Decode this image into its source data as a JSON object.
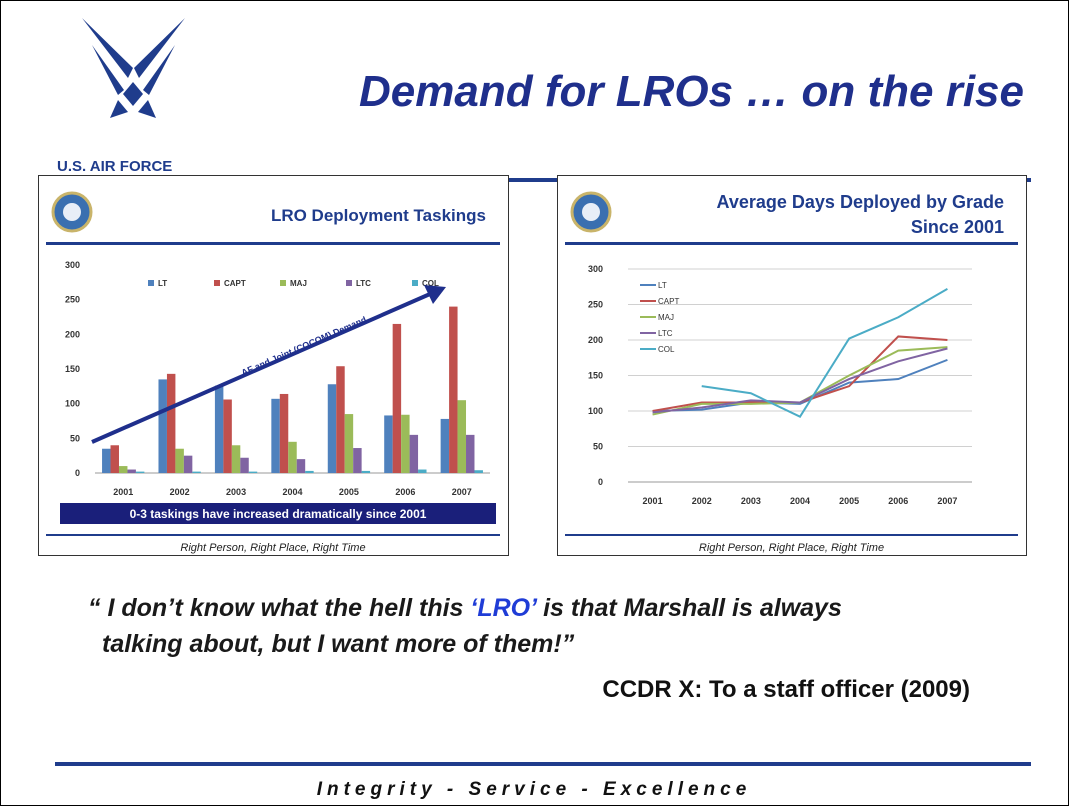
{
  "header": {
    "title": "Demand for LROs … on the rise",
    "logo_text": "U.S. AIR FORCE"
  },
  "chart_data": [
    {
      "type": "bar",
      "title": "LRO Deployment Taskings",
      "annotation": "AF and Joint (COCOM) Demand",
      "banner": "0-3 taskings have increased dramatically since 2001",
      "note": "Right Person, Right Place, Right Time",
      "categories": [
        "2001",
        "2002",
        "2003",
        "2004",
        "2005",
        "2006",
        "2007"
      ],
      "series": [
        {
          "name": "LT",
          "color": "#4f81bd",
          "values": [
            35,
            135,
            126,
            107,
            128,
            83,
            78
          ]
        },
        {
          "name": "CAPT",
          "color": "#c0504d",
          "values": [
            40,
            143,
            106,
            114,
            154,
            215,
            240
          ]
        },
        {
          "name": "MAJ",
          "color": "#9bbb59",
          "values": [
            10,
            35,
            40,
            45,
            85,
            84,
            105
          ]
        },
        {
          "name": "LTC",
          "color": "#8064a2",
          "values": [
            5,
            25,
            22,
            20,
            36,
            55,
            55
          ]
        },
        {
          "name": "COL",
          "color": "#4bacc6",
          "values": [
            2,
            2,
            2,
            3,
            3,
            5,
            4
          ]
        }
      ],
      "ylim": [
        0,
        300
      ],
      "yticks": [
        0,
        50,
        100,
        150,
        200,
        250,
        300
      ],
      "grid": false,
      "legend": "top"
    },
    {
      "type": "line",
      "title": "Average Days Deployed by Grade",
      "subtitle": "Since 2001",
      "note": "Right Person, Right Place, Right Time",
      "categories": [
        "2001",
        "2002",
        "2003",
        "2004",
        "2005",
        "2006",
        "2007"
      ],
      "series": [
        {
          "name": "LT",
          "color": "#4f81bd",
          "values": [
            100,
            102,
            112,
            110,
            140,
            145,
            172
          ]
        },
        {
          "name": "CAPT",
          "color": "#c0504d",
          "values": [
            100,
            112,
            112,
            112,
            135,
            205,
            200
          ]
        },
        {
          "name": "MAJ",
          "color": "#9bbb59",
          "values": [
            95,
            110,
            110,
            112,
            150,
            185,
            190
          ]
        },
        {
          "name": "LTC",
          "color": "#8064a2",
          "values": [
            98,
            105,
            115,
            112,
            145,
            170,
            188
          ]
        },
        {
          "name": "COL",
          "color": "#4bacc6",
          "values": [
            null,
            135,
            125,
            92,
            202,
            232,
            272
          ]
        }
      ],
      "ylim": [
        0,
        300
      ],
      "yticks": [
        0,
        50,
        100,
        150,
        200,
        250,
        300
      ],
      "grid": true,
      "legend": "top-left"
    }
  ],
  "quote": {
    "line1": [
      "“ I don’t know what the hell this ",
      "‘LRO’",
      " is that Marshall is always"
    ],
    "line2": "talking about, but I want more of them!”",
    "attribution": "CCDR X:  To a staff officer (2009)"
  },
  "footer": "Integrity - Service - Excellence"
}
